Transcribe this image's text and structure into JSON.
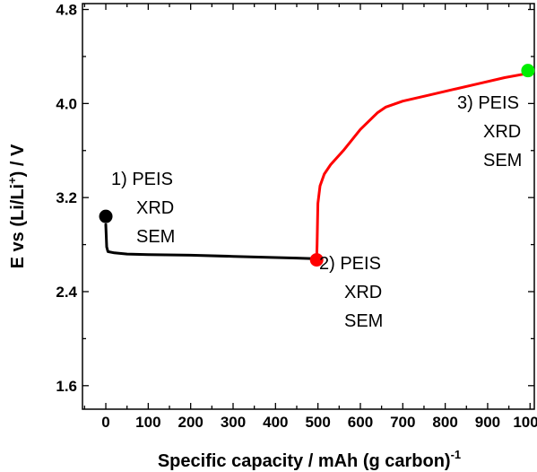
{
  "chart_data": {
    "type": "line",
    "xlabel": "Specific capacity / mAh (g carbon)",
    "xlabel_sup": "-1",
    "ylabel_pre": "E vs (Li/Li",
    "ylabel_sup": "+",
    "ylabel_post": ") / V",
    "xlim": [
      -55,
      1010
    ],
    "ylim": [
      1.4,
      4.85
    ],
    "xticks": [
      0,
      100,
      200,
      300,
      400,
      500,
      600,
      700,
      800,
      900,
      1000
    ],
    "yticks": [
      1.6,
      2.4,
      3.2,
      4.0,
      4.8
    ],
    "ytick_labels": [
      "1.6",
      "2.4",
      "3.2",
      "4.0",
      "4.8"
    ],
    "grid": false,
    "series": [
      {
        "color": "#000000",
        "x": [
          0,
          2,
          5,
          20,
          50,
          100,
          200,
          300,
          400,
          450,
          490,
          497
        ],
        "y": [
          2.97,
          2.78,
          2.74,
          2.73,
          2.72,
          2.715,
          2.71,
          2.7,
          2.69,
          2.685,
          2.68,
          2.67
        ]
      },
      {
        "color": "#ff0000",
        "x": [
          497,
          498,
          499,
          500,
          505,
          515,
          530,
          560,
          600,
          640,
          660,
          700,
          760,
          820,
          880,
          940,
          1000
        ],
        "y": [
          2.67,
          2.8,
          3.0,
          3.15,
          3.3,
          3.4,
          3.48,
          3.6,
          3.78,
          3.92,
          3.97,
          4.02,
          4.07,
          4.12,
          4.17,
          4.22,
          4.26
        ]
      }
    ],
    "markers": [
      {
        "x": 0,
        "y": 3.04,
        "color": "#000000"
      },
      {
        "x": 497,
        "y": 2.67,
        "color": "#ff0000"
      },
      {
        "x": 995,
        "y": 4.28,
        "color": "#00ee00"
      }
    ],
    "annotations": [
      {
        "lines": [
          "1) PEIS",
          "XRD",
          "SEM"
        ]
      },
      {
        "lines": [
          "2) PEIS",
          "XRD",
          "SEM"
        ]
      },
      {
        "lines": [
          "3) PEIS",
          "XRD",
          "SEM"
        ]
      }
    ]
  }
}
